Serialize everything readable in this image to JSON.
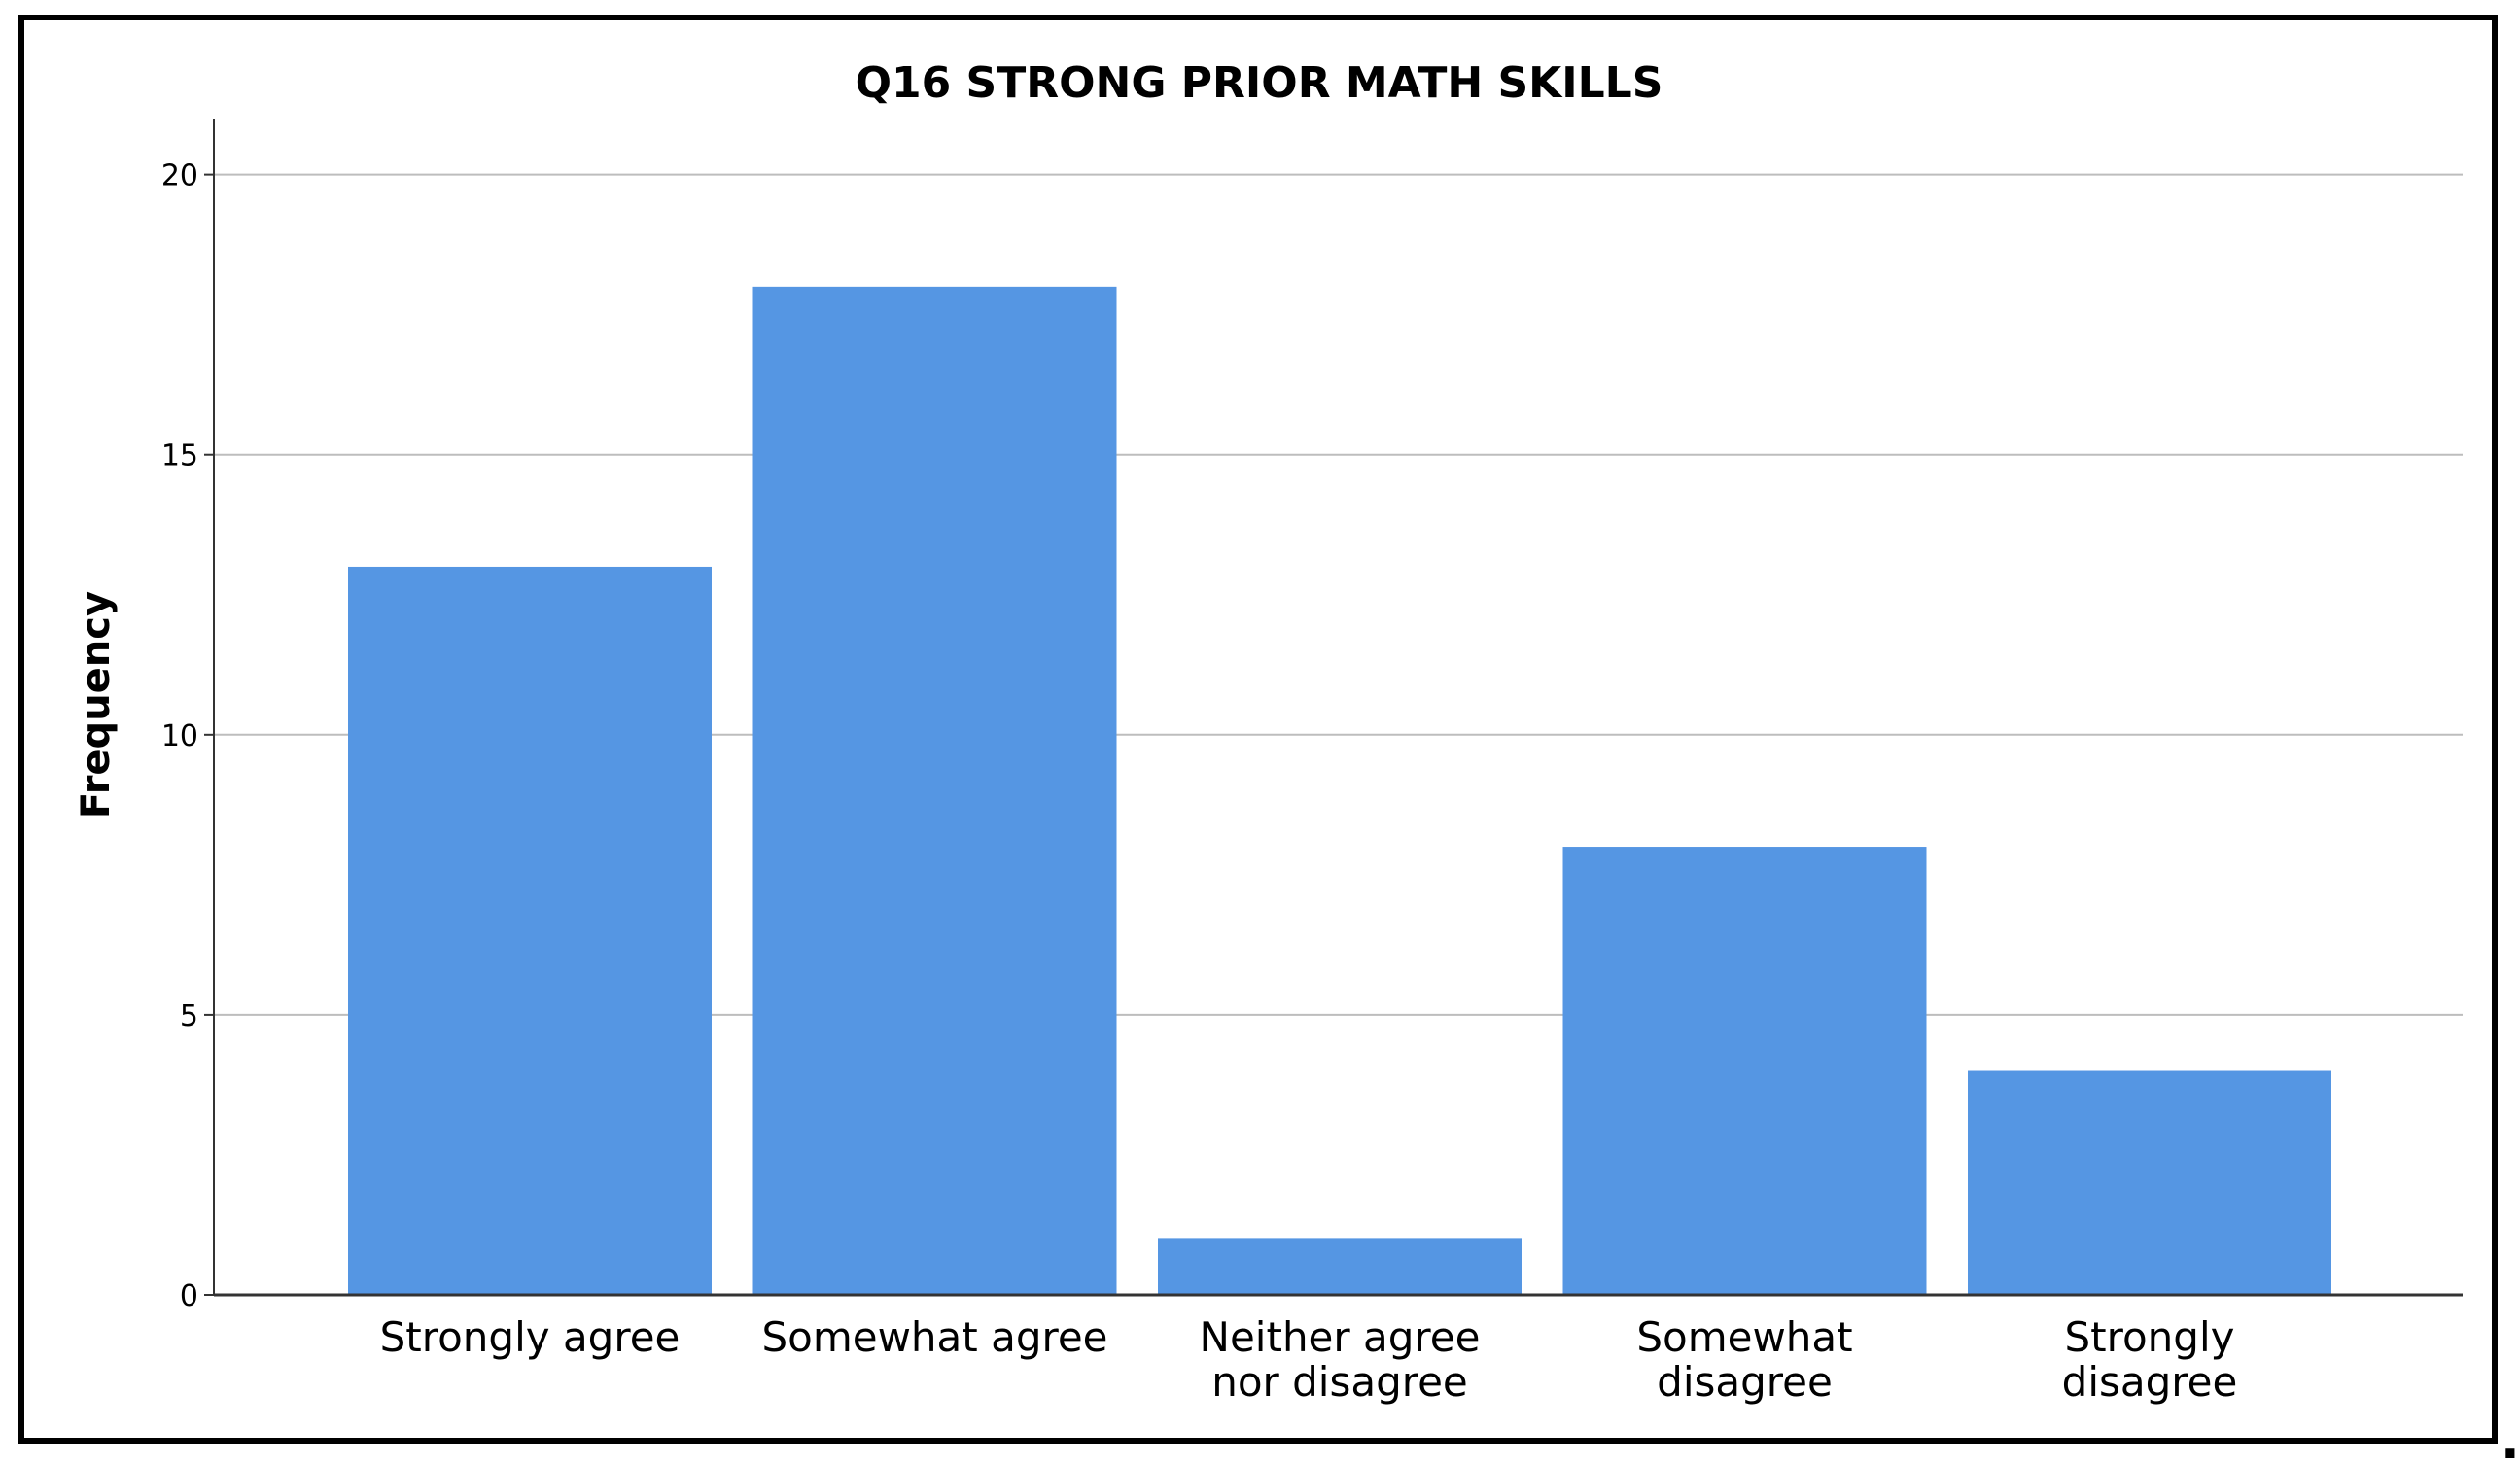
{
  "chart_data": {
    "type": "bar",
    "title": "Q16 STRONG PRIOR MATH SKILLS",
    "xlabel": "",
    "ylabel": "Frequency",
    "categories": [
      [
        "Strongly agree"
      ],
      [
        "Somewhat agree"
      ],
      [
        "Neither agree",
        "nor disagree"
      ],
      [
        "Somewhat",
        "disagree"
      ],
      [
        "Strongly",
        "disagree"
      ]
    ],
    "values": [
      13,
      18,
      1,
      8,
      4
    ],
    "ylim": [
      0,
      21
    ],
    "yticks": [
      0,
      5,
      10,
      15,
      20
    ],
    "grid": true,
    "bar_color": "#5596e3",
    "grid_color": "#bdbdbd",
    "axis_color": "#333333",
    "frame_color": "#000000"
  },
  "trailing_mark": "."
}
